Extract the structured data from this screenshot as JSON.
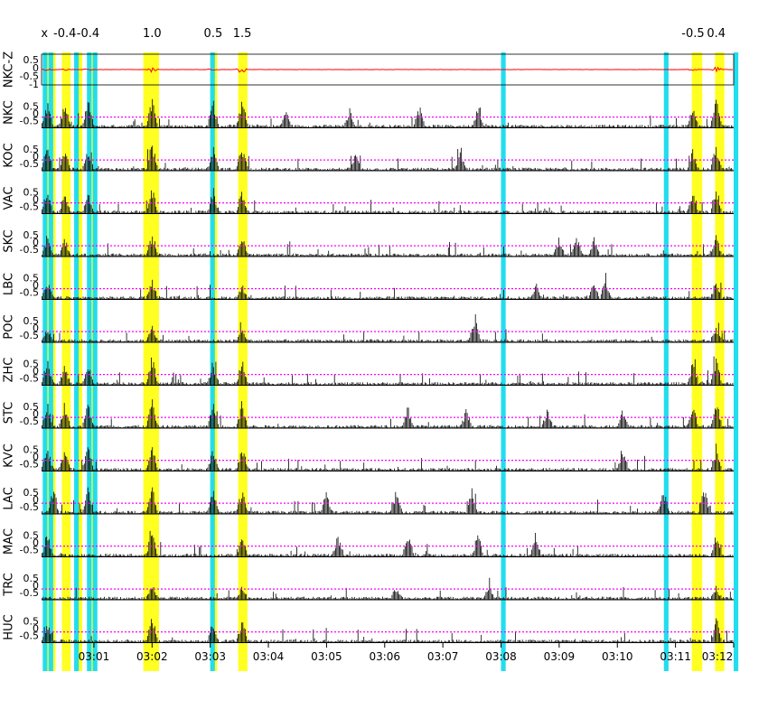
{
  "chart_data": {
    "type": "line",
    "title": "",
    "xlabel": "",
    "ylabel": "",
    "x_ticks": [
      "03:01",
      "03:02",
      "03:03",
      "03:04",
      "03:05",
      "03:06",
      "03:07",
      "03:08",
      "03:09",
      "03:10",
      "03:11",
      "03:12"
    ],
    "x_range_minutes": [
      0.1,
      12.0
    ],
    "top_labels": [
      {
        "text": "x",
        "minute": 0.15
      },
      {
        "text": "-0.4",
        "minute": 0.5
      },
      {
        "text": "-0.4",
        "minute": 0.9
      },
      {
        "text": "1.0",
        "minute": 2.0
      },
      {
        "text": "0.5",
        "minute": 3.05
      },
      {
        "text": "1.5",
        "minute": 3.55
      },
      {
        "text": "-0.5",
        "minute": 11.3
      },
      {
        "text": "0.4",
        "minute": 11.7
      }
    ],
    "highlight_bands": {
      "cyan": [
        [
          0.12,
          0.2
        ],
        [
          0.22,
          0.3
        ],
        [
          0.66,
          0.74
        ],
        [
          0.88,
          0.96
        ],
        [
          0.98,
          1.06
        ],
        [
          3.0,
          3.08
        ],
        [
          8.0,
          8.08
        ],
        [
          10.8,
          10.88
        ],
        [
          12.0,
          12.08
        ]
      ],
      "yellow": [
        [
          0.14,
          0.34
        ],
        [
          0.45,
          0.6
        ],
        [
          0.68,
          0.8
        ],
        [
          0.9,
          1.04
        ],
        [
          1.85,
          2.12
        ],
        [
          3.0,
          3.12
        ],
        [
          3.48,
          3.64
        ],
        [
          11.28,
          11.46
        ],
        [
          11.68,
          11.84
        ]
      ]
    },
    "series": [
      {
        "name": "NKC-Z",
        "yticks": [
          "0.5",
          "0",
          "-0.5",
          "-1"
        ],
        "ylim": [
          -1,
          1
        ],
        "color": "#ff0000",
        "events": [
          [
            0.2,
            0.25
          ],
          [
            0.5,
            0.2
          ],
          [
            0.9,
            0.25
          ],
          [
            2.0,
            0.6
          ],
          [
            3.05,
            0.3
          ],
          [
            3.55,
            0.9
          ],
          [
            11.3,
            0.25
          ],
          [
            11.7,
            0.55
          ]
        ]
      },
      {
        "name": "NKC",
        "yticks": [
          "0.5",
          "0",
          "-0.5"
        ],
        "ylim": [
          -1,
          1
        ],
        "color": "#000000",
        "events": [
          [
            0.2,
            0.9
          ],
          [
            0.5,
            0.85
          ],
          [
            0.9,
            0.9
          ],
          [
            2.0,
            1.0
          ],
          [
            3.05,
            0.9
          ],
          [
            3.55,
            1.0
          ],
          [
            4.3,
            0.6
          ],
          [
            5.4,
            0.6
          ],
          [
            6.6,
            0.7
          ],
          [
            7.6,
            0.6
          ],
          [
            11.3,
            0.8
          ],
          [
            11.7,
            1.0
          ]
        ]
      },
      {
        "name": "KOC",
        "yticks": [
          "0.5",
          "0",
          "-0.5"
        ],
        "ylim": [
          -1,
          1
        ],
        "color": "#000000",
        "events": [
          [
            0.2,
            0.9
          ],
          [
            0.5,
            0.8
          ],
          [
            0.9,
            0.8
          ],
          [
            2.0,
            1.0
          ],
          [
            3.05,
            0.8
          ],
          [
            3.55,
            0.9
          ],
          [
            5.5,
            0.5
          ],
          [
            7.3,
            0.6
          ],
          [
            11.3,
            0.7
          ],
          [
            11.7,
            0.9
          ]
        ]
      },
      {
        "name": "VAC",
        "yticks": [
          "0.5",
          "0",
          "-0.5"
        ],
        "ylim": [
          -1,
          1
        ],
        "color": "#000000",
        "events": [
          [
            0.2,
            0.8
          ],
          [
            0.5,
            0.7
          ],
          [
            0.9,
            0.7
          ],
          [
            2.0,
            0.9
          ],
          [
            3.05,
            0.8
          ],
          [
            3.55,
            0.8
          ],
          [
            11.3,
            0.7
          ],
          [
            11.7,
            0.9
          ]
        ]
      },
      {
        "name": "SKC",
        "yticks": [
          "0.5",
          "0",
          "-0.5"
        ],
        "ylim": [
          -1,
          1
        ],
        "color": "#000000",
        "events": [
          [
            0.2,
            0.7
          ],
          [
            0.5,
            0.6
          ],
          [
            2.0,
            0.8
          ],
          [
            3.55,
            0.7
          ],
          [
            9.0,
            0.6
          ],
          [
            9.3,
            0.7
          ],
          [
            9.6,
            0.6
          ],
          [
            11.7,
            0.7
          ]
        ]
      },
      {
        "name": "LBC",
        "yticks": [
          "0.5",
          "0",
          "-0.5"
        ],
        "ylim": [
          -1,
          1
        ],
        "color": "#000000",
        "events": [
          [
            0.2,
            0.6
          ],
          [
            2.0,
            0.7
          ],
          [
            3.55,
            0.5
          ],
          [
            8.6,
            0.5
          ],
          [
            9.6,
            0.5
          ],
          [
            9.8,
            0.7
          ],
          [
            11.7,
            0.6
          ]
        ]
      },
      {
        "name": "POC",
        "yticks": [
          "0.5",
          "0",
          "-0.5"
        ],
        "ylim": [
          -1,
          1
        ],
        "color": "#000000",
        "events": [
          [
            0.2,
            0.5
          ],
          [
            2.0,
            0.6
          ],
          [
            3.55,
            0.4
          ],
          [
            7.55,
            1.0
          ],
          [
            11.7,
            0.5
          ]
        ]
      },
      {
        "name": "ZHC",
        "yticks": [
          "0.5",
          "0",
          "-0.5"
        ],
        "ylim": [
          -1,
          1
        ],
        "color": "#000000",
        "events": [
          [
            0.2,
            0.8
          ],
          [
            0.5,
            0.7
          ],
          [
            0.9,
            0.7
          ],
          [
            2.0,
            1.0
          ],
          [
            3.05,
            0.8
          ],
          [
            3.55,
            0.9
          ],
          [
            11.3,
            0.8
          ],
          [
            11.7,
            0.9
          ]
        ]
      },
      {
        "name": "STC",
        "yticks": [
          "0.5",
          "0",
          "-0.5"
        ],
        "ylim": [
          -1,
          1
        ],
        "color": "#000000",
        "events": [
          [
            0.2,
            0.8
          ],
          [
            0.5,
            0.8
          ],
          [
            0.9,
            0.8
          ],
          [
            2.0,
            1.0
          ],
          [
            3.05,
            0.8
          ],
          [
            3.55,
            0.9
          ],
          [
            6.4,
            0.7
          ],
          [
            7.4,
            0.6
          ],
          [
            8.8,
            0.6
          ],
          [
            10.1,
            0.7
          ],
          [
            11.3,
            0.7
          ],
          [
            11.7,
            0.9
          ]
        ]
      },
      {
        "name": "KVC",
        "yticks": [
          "0.5",
          "0",
          "-0.5"
        ],
        "ylim": [
          -1,
          1
        ],
        "color": "#000000",
        "events": [
          [
            0.2,
            0.9
          ],
          [
            0.5,
            0.7
          ],
          [
            0.9,
            0.8
          ],
          [
            2.0,
            0.9
          ],
          [
            3.05,
            0.8
          ],
          [
            3.55,
            0.9
          ],
          [
            10.1,
            0.7
          ],
          [
            11.7,
            0.8
          ]
        ]
      },
      {
        "name": "LAC",
        "yticks": [
          "0.5",
          "0",
          "-0.5"
        ],
        "ylim": [
          -1,
          1
        ],
        "color": "#000000",
        "events": [
          [
            0.3,
            0.9
          ],
          [
            0.9,
            0.9
          ],
          [
            2.0,
            0.9
          ],
          [
            3.05,
            0.9
          ],
          [
            3.55,
            0.9
          ],
          [
            5.0,
            0.8
          ],
          [
            6.2,
            0.8
          ],
          [
            7.5,
            0.8
          ],
          [
            10.8,
            0.8
          ],
          [
            11.5,
            0.9
          ]
        ]
      },
      {
        "name": "MAC",
        "yticks": [
          "0.5",
          "0",
          "-0.5"
        ],
        "ylim": [
          -1,
          1
        ],
        "color": "#000000",
        "events": [
          [
            0.2,
            0.8
          ],
          [
            2.0,
            0.9
          ],
          [
            3.55,
            0.8
          ],
          [
            5.2,
            0.7
          ],
          [
            6.4,
            0.8
          ],
          [
            7.6,
            0.8
          ],
          [
            8.6,
            0.8
          ],
          [
            11.7,
            0.8
          ]
        ]
      },
      {
        "name": "TRC",
        "yticks": [
          "0.5",
          "0",
          "-0.5"
        ],
        "ylim": [
          -1,
          1
        ],
        "color": "#000000",
        "events": [
          [
            2.0,
            0.5
          ],
          [
            3.55,
            0.4
          ],
          [
            6.2,
            0.4
          ],
          [
            7.8,
            0.5
          ],
          [
            11.7,
            0.4
          ]
        ]
      },
      {
        "name": "HUC",
        "yticks": [
          "0.5",
          "0",
          "-0.5"
        ],
        "ylim": [
          -1,
          1
        ],
        "color": "#000000",
        "events": [
          [
            0.2,
            0.7
          ],
          [
            2.0,
            0.9
          ],
          [
            3.05,
            0.6
          ],
          [
            3.55,
            0.8
          ],
          [
            11.7,
            0.8
          ]
        ]
      }
    ],
    "reference_line": {
      "value": -0.3,
      "color": "#ff00ff",
      "style": "dotted"
    },
    "grid": false,
    "legend": "none"
  }
}
